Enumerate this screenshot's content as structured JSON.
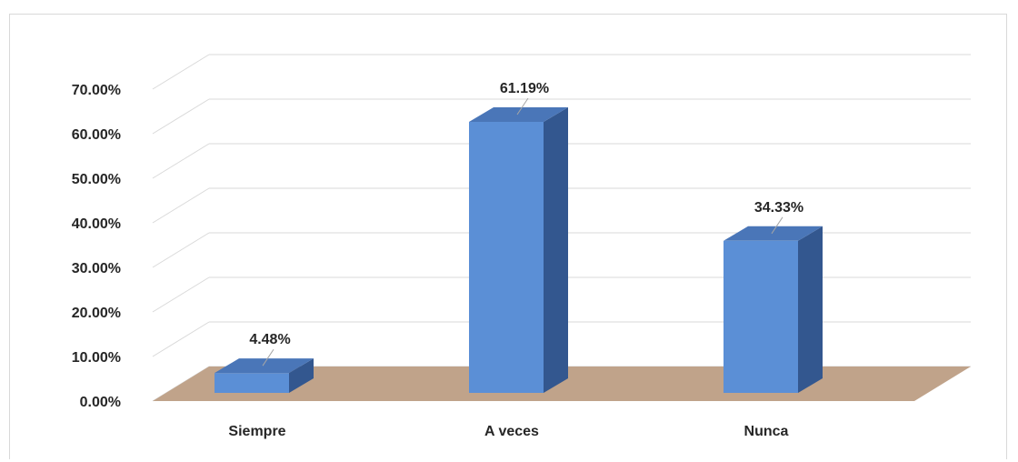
{
  "chart_data": {
    "type": "bar",
    "categories": [
      "Siempre",
      "A veces",
      "Nunca"
    ],
    "values": [
      4.48,
      61.19,
      34.33
    ],
    "data_labels": [
      "4.48%",
      "61.19%",
      "34.33%"
    ],
    "y_ticks": [
      "0.00%",
      "10.00%",
      "20.00%",
      "30.00%",
      "40.00%",
      "50.00%",
      "60.00%",
      "70.00%"
    ],
    "ylim": [
      0,
      70
    ],
    "grid": true,
    "style": "3d-column",
    "colors": {
      "bar_front": "#5b8fd6",
      "bar_top": "#4a76b8",
      "bar_side": "#33578f",
      "floor": "#c0a38a",
      "grid": "#d9d9d9"
    }
  }
}
